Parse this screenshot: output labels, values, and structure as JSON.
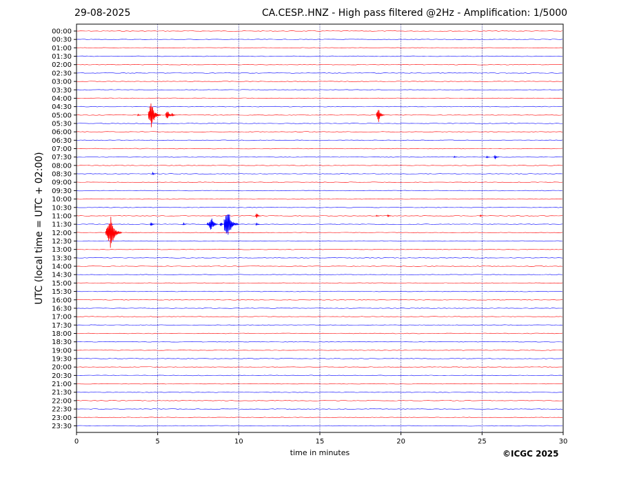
{
  "header": {
    "date": "29-08-2025",
    "title": "CA.CESP..HNZ - High pass filtered @2Hz - Amplification: 1/5000"
  },
  "footer": {
    "copyright": "©ICGC 2025"
  },
  "colors": {
    "odd_trace": "#ff0000",
    "even_trace": "#0000ff",
    "grid": "#000080",
    "axes": "#000000"
  },
  "chart_data": {
    "type": "line",
    "title": "CA.CESP..HNZ - High pass filtered @2Hz - Amplification: 1/5000",
    "xlabel": "time in minutes",
    "ylabel": "UTC (local time = UTC + 02:00)",
    "xlim": [
      0,
      30
    ],
    "xticks": [
      0,
      5,
      10,
      15,
      20,
      25,
      30
    ],
    "grid": "vertical dotted lines at x ticks",
    "trace_labels": [
      "00:00",
      "00:30",
      "01:00",
      "01:30",
      "02:00",
      "02:30",
      "03:00",
      "03:30",
      "04:00",
      "04:30",
      "05:00",
      "05:30",
      "06:00",
      "06:30",
      "07:00",
      "07:30",
      "08:00",
      "08:30",
      "09:00",
      "09:30",
      "10:00",
      "10:30",
      "11:00",
      "11:30",
      "12:00",
      "12:30",
      "13:00",
      "13:30",
      "14:00",
      "14:30",
      "15:00",
      "15:30",
      "16:00",
      "16:30",
      "17:00",
      "17:30",
      "18:00",
      "18:30",
      "19:00",
      "19:30",
      "20:00",
      "20:30",
      "21:00",
      "21:30",
      "22:00",
      "22:30",
      "23:00",
      "23:30"
    ],
    "events": [
      {
        "trace": "05:00",
        "time": 3.8,
        "amplitude": 0.15
      },
      {
        "trace": "05:00",
        "time": 4.6,
        "amplitude": 1.8
      },
      {
        "trace": "05:00",
        "time": 5.6,
        "amplitude": 0.8
      },
      {
        "trace": "05:00",
        "time": 5.9,
        "amplitude": 0.3
      },
      {
        "trace": "05:00",
        "time": 18.6,
        "amplitude": 1.0
      },
      {
        "trace": "07:30",
        "time": 23.3,
        "amplitude": 0.1
      },
      {
        "trace": "07:30",
        "time": 25.3,
        "amplitude": 0.15
      },
      {
        "trace": "07:30",
        "time": 25.8,
        "amplitude": 0.35
      },
      {
        "trace": "08:30",
        "time": 4.7,
        "amplitude": 0.2
      },
      {
        "trace": "11:00",
        "time": 11.1,
        "amplitude": 0.4
      },
      {
        "trace": "11:00",
        "time": 18.5,
        "amplitude": 0.1
      },
      {
        "trace": "11:00",
        "time": 19.2,
        "amplitude": 0.15
      },
      {
        "trace": "11:00",
        "time": 24.9,
        "amplitude": 0.15
      },
      {
        "trace": "11:30",
        "time": 4.6,
        "amplitude": 0.3
      },
      {
        "trace": "11:30",
        "time": 6.6,
        "amplitude": 0.15
      },
      {
        "trace": "11:30",
        "time": 8.1,
        "amplitude": 0.3
      },
      {
        "trace": "11:30",
        "time": 8.3,
        "amplitude": 1.1
      },
      {
        "trace": "11:30",
        "time": 8.9,
        "amplitude": 0.3
      },
      {
        "trace": "11:30",
        "time": 9.3,
        "amplitude": 2.2
      },
      {
        "trace": "11:30",
        "time": 11.1,
        "amplitude": 0.2
      },
      {
        "trace": "12:00",
        "time": 1.9,
        "amplitude": 0.9
      },
      {
        "trace": "12:00",
        "time": 2.1,
        "amplitude": 2.2
      }
    ]
  }
}
